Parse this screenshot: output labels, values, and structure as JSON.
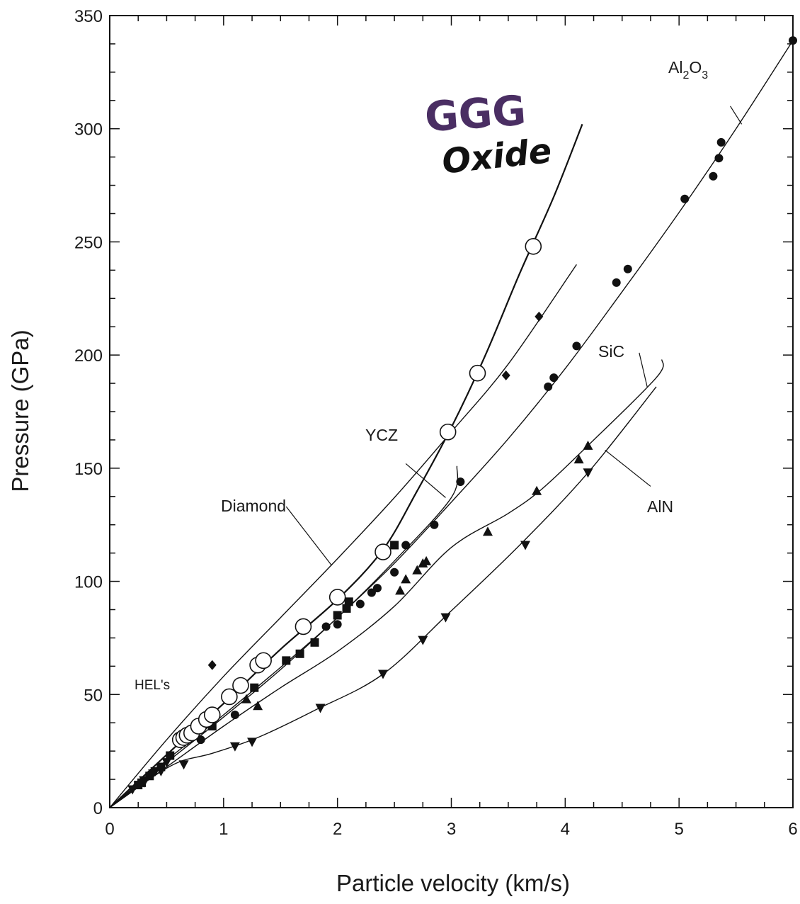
{
  "chart_data": {
    "type": "scatter",
    "xlabel": "Particle velocity (km/s)",
    "ylabel": "Pressure (GPa)",
    "xlim": [
      0,
      6
    ],
    "ylim": [
      0,
      350
    ],
    "xticks": [
      "0",
      "1",
      "2",
      "3",
      "4",
      "5",
      "6"
    ],
    "yticks": [
      "0",
      "50",
      "100",
      "150",
      "200",
      "250",
      "300",
      "350"
    ],
    "grid": false,
    "annotations": {
      "al2o3": {
        "main": "Al",
        "sub1": "2",
        "mid": "O",
        "sub2": "3"
      },
      "sic": "SiC",
      "ycz": "YCZ",
      "diamond": "Diamond",
      "aln": "AlN",
      "hels": "HEL's"
    },
    "handwritten": {
      "line1": "GGG",
      "line2": "Oxide"
    },
    "series": [
      {
        "name": "GGG",
        "marker": "open-circle",
        "points": [
          [
            0.62,
            30
          ],
          [
            0.65,
            31
          ],
          [
            0.68,
            32
          ],
          [
            0.72,
            33
          ],
          [
            0.78,
            36
          ],
          [
            0.85,
            39
          ],
          [
            0.9,
            41
          ],
          [
            1.05,
            49
          ],
          [
            1.15,
            54
          ],
          [
            1.3,
            63
          ],
          [
            1.35,
            65
          ],
          [
            1.7,
            80
          ],
          [
            2.0,
            93
          ],
          [
            2.4,
            113
          ],
          [
            2.97,
            166
          ],
          [
            3.23,
            192
          ],
          [
            3.72,
            248
          ]
        ],
        "curve": [
          [
            0,
            0
          ],
          [
            0.6,
            28
          ],
          [
            1.0,
            46
          ],
          [
            1.5,
            70
          ],
          [
            2.0,
            92
          ],
          [
            2.4,
            114
          ],
          [
            2.7,
            140
          ],
          [
            3.0,
            168
          ],
          [
            3.3,
            200
          ],
          [
            3.6,
            236
          ],
          [
            3.9,
            270
          ],
          [
            4.15,
            302
          ]
        ]
      },
      {
        "name": "Al2O3",
        "marker": "filled-circle",
        "points": [
          [
            0.8,
            30
          ],
          [
            1.1,
            41
          ],
          [
            1.9,
            80
          ],
          [
            2.0,
            81
          ],
          [
            2.2,
            90
          ],
          [
            2.3,
            95
          ],
          [
            2.35,
            97
          ],
          [
            2.5,
            104
          ],
          [
            2.6,
            116
          ],
          [
            2.85,
            125
          ],
          [
            3.08,
            144
          ],
          [
            3.85,
            186
          ],
          [
            3.9,
            190
          ],
          [
            4.1,
            204
          ],
          [
            4.45,
            232
          ],
          [
            4.55,
            238
          ],
          [
            5.05,
            269
          ],
          [
            5.3,
            279
          ],
          [
            5.35,
            287
          ],
          [
            5.37,
            294
          ],
          [
            6.0,
            339
          ]
        ],
        "curve": [
          [
            0,
            0
          ],
          [
            0.5,
            20
          ],
          [
            1.0,
            40
          ],
          [
            1.5,
            61
          ],
          [
            2.0,
            84
          ],
          [
            2.5,
            108
          ],
          [
            3.0,
            135
          ],
          [
            3.5,
            163
          ],
          [
            4.0,
            194
          ],
          [
            4.5,
            228
          ],
          [
            5.0,
            263
          ],
          [
            5.5,
            300
          ],
          [
            6.0,
            339
          ]
        ]
      },
      {
        "name": "Diamond",
        "marker": "filled-diamond",
        "points": [
          [
            0.9,
            63
          ],
          [
            3.48,
            191
          ],
          [
            3.77,
            217
          ]
        ],
        "curve": [
          [
            0,
            0
          ],
          [
            0.5,
            30
          ],
          [
            1.0,
            58
          ],
          [
            1.5,
            84
          ],
          [
            2.0,
            110
          ],
          [
            2.5,
            137
          ],
          [
            3.0,
            166
          ],
          [
            3.5,
            196
          ],
          [
            4.1,
            240
          ]
        ]
      },
      {
        "name": "YCZ",
        "marker": "filled-square",
        "points": [
          [
            0.53,
            23
          ],
          [
            0.9,
            36
          ],
          [
            1.27,
            53
          ],
          [
            1.55,
            65
          ],
          [
            1.67,
            68
          ],
          [
            1.8,
            73
          ],
          [
            2.0,
            85
          ],
          [
            2.08,
            88
          ],
          [
            2.1,
            91
          ],
          [
            2.5,
            116
          ]
        ],
        "curve": [
          [
            0,
            0
          ],
          [
            0.5,
            21
          ],
          [
            1.0,
            41
          ],
          [
            1.5,
            62
          ],
          [
            2.0,
            84
          ],
          [
            2.5,
            109
          ],
          [
            3.0,
            137
          ],
          [
            3.05,
            151
          ]
        ]
      },
      {
        "name": "SiC",
        "marker": "filled-triangle",
        "points": [
          [
            1.2,
            48
          ],
          [
            1.3,
            45
          ],
          [
            2.55,
            96
          ],
          [
            2.6,
            101
          ],
          [
            2.7,
            105
          ],
          [
            2.75,
            108
          ],
          [
            2.78,
            109
          ],
          [
            3.32,
            122
          ],
          [
            3.75,
            140
          ],
          [
            4.12,
            154
          ],
          [
            4.2,
            160
          ]
        ],
        "curve": [
          [
            0,
            0
          ],
          [
            0.5,
            18
          ],
          [
            1.0,
            36
          ],
          [
            1.5,
            53
          ],
          [
            2.0,
            69
          ],
          [
            2.5,
            89
          ],
          [
            3.0,
            115
          ],
          [
            3.5,
            130
          ],
          [
            3.8,
            141
          ],
          [
            4.2,
            160
          ],
          [
            4.8,
            190
          ],
          [
            4.85,
            198
          ]
        ]
      },
      {
        "name": "AlN",
        "marker": "filled-triangle-down",
        "points": [
          [
            0.3,
            11
          ],
          [
            0.45,
            16
          ],
          [
            0.65,
            19
          ],
          [
            1.1,
            27
          ],
          [
            1.25,
            29
          ],
          [
            1.85,
            44
          ],
          [
            2.4,
            59
          ],
          [
            2.75,
            74
          ],
          [
            2.95,
            84
          ],
          [
            3.65,
            116
          ],
          [
            4.2,
            148
          ]
        ],
        "curve": [
          [
            0,
            0
          ],
          [
            0.3,
            11
          ],
          [
            0.6,
            20
          ],
          [
            0.9,
            24
          ],
          [
            1.3,
            31
          ],
          [
            1.8,
            43
          ],
          [
            2.4,
            59
          ],
          [
            3.0,
            87
          ],
          [
            3.6,
            116
          ],
          [
            4.2,
            148
          ],
          [
            4.8,
            186
          ]
        ]
      }
    ]
  }
}
